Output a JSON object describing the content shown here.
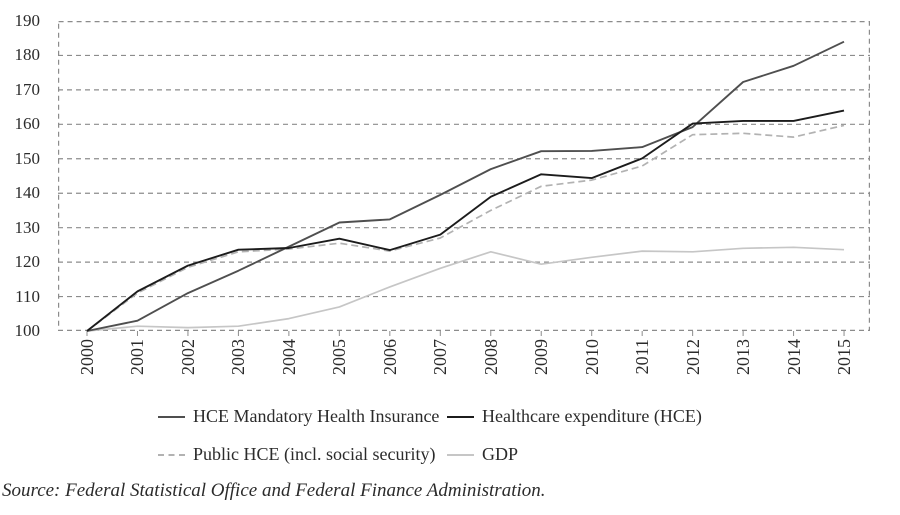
{
  "chart_data": {
    "type": "line",
    "title": "",
    "xlabel": "",
    "ylabel": "",
    "x": [
      2000,
      2001,
      2002,
      2003,
      2004,
      2005,
      2006,
      2007,
      2008,
      2009,
      2010,
      2011,
      2012,
      2013,
      2014,
      2015
    ],
    "series": [
      {
        "name": "HCE Mandatory Health Insurance",
        "style": "solid",
        "color": "#4f4f4f",
        "values": [
          100,
          103,
          111,
          117.5,
          124.5,
          131.5,
          132.4,
          139.5,
          147,
          152.2,
          152.3,
          153.4,
          159.2,
          172.3,
          177,
          184
        ]
      },
      {
        "name": "Healthcare expenditure (HCE)",
        "style": "solid",
        "color": "#1c1c1c",
        "values": [
          100,
          111.5,
          119,
          123.6,
          124.1,
          126.8,
          123.5,
          128,
          139,
          145.5,
          144.4,
          150.1,
          160.2,
          161,
          161,
          164
        ]
      },
      {
        "name": "Public HCE (incl. social security)",
        "style": "dashed",
        "color": "#b2b2b2",
        "values": [
          100,
          111,
          118.5,
          123,
          123.8,
          125.5,
          123.2,
          127,
          135,
          142,
          143.8,
          147.9,
          157,
          157.4,
          156.3,
          159.7
        ]
      },
      {
        "name": "GDP",
        "style": "solid",
        "color": "#c6c6c6",
        "values": [
          100,
          101.4,
          101,
          101.4,
          103.6,
          107,
          112.8,
          118.2,
          123,
          119.4,
          121.4,
          123.2,
          123,
          124,
          124.3,
          123.6
        ]
      }
    ],
    "ylim": [
      100,
      190
    ],
    "yticks": [
      100,
      110,
      120,
      130,
      140,
      150,
      160,
      170,
      180,
      190
    ],
    "grid": true,
    "grid_style": "dashed",
    "legend_position": "bottom"
  },
  "source_note": "Source: Federal Statistical Office and Federal Finance Administration."
}
